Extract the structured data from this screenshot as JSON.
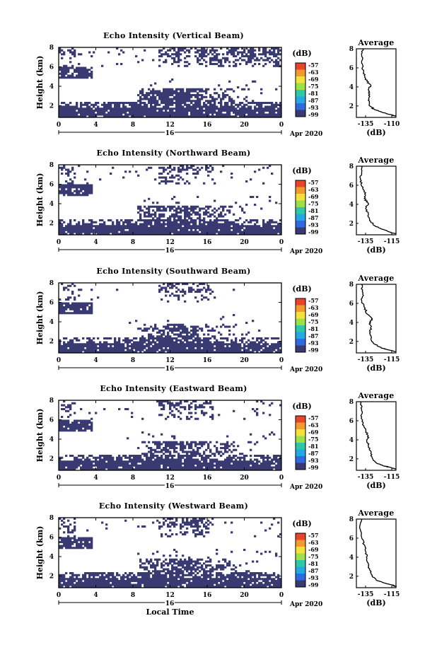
{
  "chart_data": [
    {
      "type": "heatmap",
      "title": "Echo Intensity (Vertical Beam)",
      "ylabel": "Height (km)",
      "xlim": [
        0,
        24
      ],
      "ylim": [
        0.8,
        8
      ],
      "xticks": [
        "0",
        "4",
        "8",
        "12",
        "16",
        "20",
        "0"
      ],
      "yticks": [
        "2",
        "4",
        "6",
        "8"
      ],
      "date_label": "16",
      "month_label": "Apr 2020",
      "colorbar": {
        "unit": "(dB)",
        "labels": [
          "-57",
          "-63",
          "-69",
          "-75",
          "-81",
          "-87",
          "-93",
          "-99"
        ]
      },
      "profile": {
        "title": "Average",
        "xlabel": "(dB)",
        "xticks": [
          "-135",
          "-110"
        ],
        "yticks": [
          "2",
          "4",
          "6",
          "8"
        ],
        "xlim": [
          -140,
          -110
        ],
        "ylim": [
          0.8,
          8
        ],
        "points": [
          [
            -110,
            0.9
          ],
          [
            -114,
            1.1
          ],
          [
            -120,
            1.3
          ],
          [
            -126,
            1.6
          ],
          [
            -130,
            2.0
          ],
          [
            -131,
            2.6
          ],
          [
            -130,
            3.2
          ],
          [
            -131,
            3.7
          ],
          [
            -129,
            4.1
          ],
          [
            -132,
            4.6
          ],
          [
            -134,
            5.2
          ],
          [
            -135,
            5.8
          ],
          [
            -136,
            6.5
          ],
          [
            -136,
            7.2
          ],
          [
            -135,
            8.0
          ]
        ]
      }
    },
    {
      "type": "heatmap",
      "title": "Echo Intensity (Northward Beam)",
      "ylabel": "Height (km)",
      "xlim": [
        0,
        24
      ],
      "ylim": [
        0.8,
        8
      ],
      "xticks": [
        "0",
        "4",
        "8",
        "12",
        "16",
        "20",
        "0"
      ],
      "yticks": [
        "2",
        "4",
        "6",
        "8"
      ],
      "date_label": "16",
      "month_label": "Apr 2020",
      "colorbar": {
        "unit": "(dB)",
        "labels": [
          "-57",
          "-63",
          "-69",
          "-75",
          "-81",
          "-87",
          "-93",
          "-99"
        ]
      },
      "profile": {
        "title": "Average",
        "xlabel": "(dB)",
        "xticks": [
          "-135",
          "-115"
        ],
        "yticks": [
          "2",
          "4",
          "6",
          "8"
        ],
        "xlim": [
          -140,
          -110
        ],
        "ylim": [
          0.8,
          8
        ],
        "points": [
          [
            -110,
            0.9
          ],
          [
            -115,
            1.1
          ],
          [
            -121,
            1.4
          ],
          [
            -127,
            1.8
          ],
          [
            -130,
            2.4
          ],
          [
            -131,
            3.0
          ],
          [
            -133,
            3.6
          ],
          [
            -131,
            4.1
          ],
          [
            -134,
            4.6
          ],
          [
            -133,
            5.2
          ],
          [
            -136,
            5.9
          ],
          [
            -137,
            6.6
          ],
          [
            -136,
            7.3
          ],
          [
            -136,
            8.0
          ]
        ]
      }
    },
    {
      "type": "heatmap",
      "title": "Echo Intensity (Southward Beam)",
      "ylabel": "Height (km)",
      "xlim": [
        0,
        24
      ],
      "ylim": [
        0.8,
        8
      ],
      "xticks": [
        "0",
        "4",
        "8",
        "12",
        "16",
        "20",
        "0"
      ],
      "yticks": [
        "2",
        "4",
        "6",
        "8"
      ],
      "date_label": "16",
      "month_label": "Apr 2020",
      "colorbar": {
        "unit": "(dB)",
        "labels": [
          "-57",
          "-63",
          "-69",
          "-75",
          "-81",
          "-87",
          "-93",
          "-99"
        ]
      },
      "profile": {
        "title": "Average",
        "xlabel": "(dB)",
        "xticks": [
          "-135",
          "-115"
        ],
        "yticks": [
          "2",
          "4",
          "6",
          "8"
        ],
        "xlim": [
          -140,
          -110
        ],
        "ylim": [
          0.8,
          8
        ],
        "points": [
          [
            -110,
            0.9
          ],
          [
            -115,
            1.1
          ],
          [
            -121,
            1.3
          ],
          [
            -126,
            1.7
          ],
          [
            -129,
            2.3
          ],
          [
            -130,
            2.9
          ],
          [
            -129,
            3.5
          ],
          [
            -130,
            4.0
          ],
          [
            -128,
            4.4
          ],
          [
            -132,
            4.9
          ],
          [
            -134,
            5.6
          ],
          [
            -136,
            6.3
          ],
          [
            -135,
            7.1
          ],
          [
            -136,
            8.0
          ]
        ]
      }
    },
    {
      "type": "heatmap",
      "title": "Echo Intensity (Eastward Beam)",
      "ylabel": "Height (km)",
      "xlim": [
        0,
        24
      ],
      "ylim": [
        0.8,
        8
      ],
      "xticks": [
        "0",
        "4",
        "8",
        "12",
        "16",
        "20",
        "0"
      ],
      "yticks": [
        "2",
        "4",
        "6",
        "8"
      ],
      "date_label": "16",
      "month_label": "Apr 2020",
      "colorbar": {
        "unit": "(dB)",
        "labels": [
          "-57",
          "-63",
          "-69",
          "-75",
          "-81",
          "-87",
          "-93",
          "-99"
        ]
      },
      "profile": {
        "title": "Average",
        "xlabel": "(dB)",
        "xticks": [
          "-135",
          "-115"
        ],
        "yticks": [
          "2",
          "4",
          "6",
          "8"
        ],
        "xlim": [
          -140,
          -110
        ],
        "ylim": [
          0.8,
          8
        ],
        "points": [
          [
            -110,
            0.9
          ],
          [
            -114,
            1.1
          ],
          [
            -120,
            1.3
          ],
          [
            -125,
            1.6
          ],
          [
            -128,
            2.1
          ],
          [
            -129,
            2.8
          ],
          [
            -131,
            3.4
          ],
          [
            -132,
            3.9
          ],
          [
            -131,
            4.4
          ],
          [
            -133,
            5.0
          ],
          [
            -135,
            5.7
          ],
          [
            -136,
            6.4
          ],
          [
            -136,
            7.2
          ],
          [
            -137,
            8.0
          ]
        ]
      }
    },
    {
      "type": "heatmap",
      "title": "Echo Intensity (Westward Beam)",
      "ylabel": "Height (km)",
      "xlabel": "Local Time",
      "xlim": [
        0,
        24
      ],
      "ylim": [
        0.8,
        8
      ],
      "xticks": [
        "0",
        "4",
        "8",
        "12",
        "16",
        "20",
        "0"
      ],
      "yticks": [
        "2",
        "4",
        "6",
        "8"
      ],
      "date_label": "16",
      "month_label": "Apr 2020",
      "colorbar": {
        "unit": "(dB)",
        "labels": [
          "-57",
          "-63",
          "-69",
          "-75",
          "-81",
          "-87",
          "-93",
          "-99"
        ]
      },
      "profile": {
        "title": "Average",
        "xlabel": "(dB)",
        "xticks": [
          "-135",
          "-115"
        ],
        "yticks": [
          "2",
          "4",
          "6",
          "8"
        ],
        "xlim": [
          -140,
          -110
        ],
        "ylim": [
          0.8,
          8
        ],
        "points": [
          [
            -110,
            0.9
          ],
          [
            -113,
            1.1
          ],
          [
            -119,
            1.3
          ],
          [
            -125,
            1.6
          ],
          [
            -128,
            2.1
          ],
          [
            -130,
            2.7
          ],
          [
            -131,
            3.3
          ],
          [
            -132,
            3.9
          ],
          [
            -133,
            4.6
          ],
          [
            -134,
            5.3
          ],
          [
            -136,
            6.1
          ],
          [
            -137,
            6.9
          ],
          [
            -136,
            8.0
          ]
        ]
      }
    }
  ],
  "colors": {
    "echo": "#3a3a72",
    "colorbar": [
      "#e8442a",
      "#f29a2e",
      "#f4e23a",
      "#9ee04a",
      "#2ec8a8",
      "#24a8e4",
      "#2f6ae0",
      "#3a3a72"
    ]
  }
}
